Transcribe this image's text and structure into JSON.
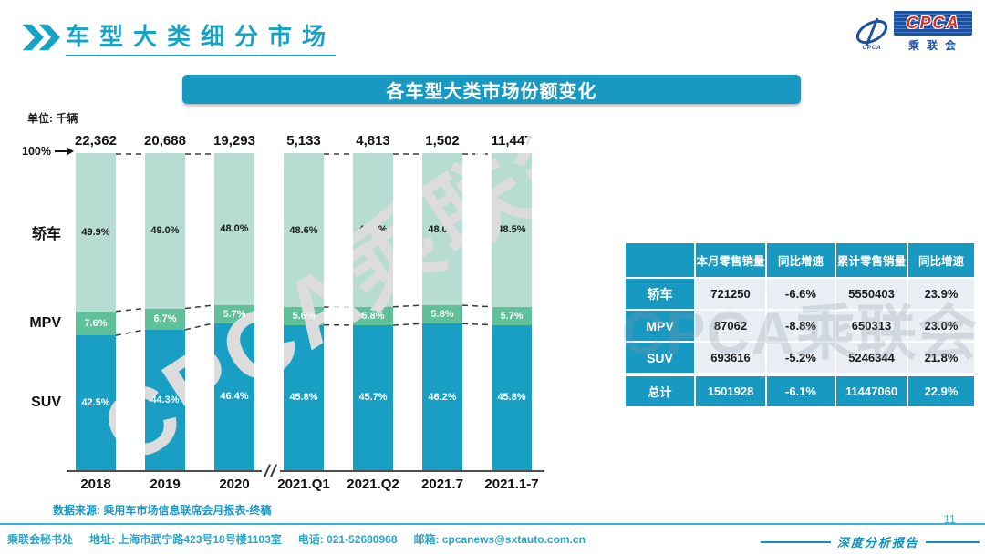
{
  "header": {
    "title": "车型大类细分市场",
    "logo": {
      "acronym": "CPCA",
      "org_name": "乘联会",
      "emblem_caption": "CPCA"
    }
  },
  "banner": {
    "title": "各车型大类市场份额变化"
  },
  "chart_data": {
    "type": "stacked-bar-100pct",
    "title": "各车型大类市场份额变化",
    "unit_note": "单位: 千辆",
    "y_top_label": "100%",
    "categories": [
      "2018",
      "2019",
      "2020",
      "2021.Q1",
      "2021.Q2",
      "2021.7",
      "2021.1-7"
    ],
    "totals_thousand_units": [
      "22,362",
      "20,688",
      "19,293",
      "5,133",
      "4,813",
      "1,502",
      "11,447"
    ],
    "series": [
      {
        "key": "sedan",
        "name": "轿车",
        "color": "#b7dcd2",
        "label_color": "#1a1a1a",
        "values": [
          49.9,
          49.0,
          48.0,
          48.6,
          48.5,
          48.0,
          48.5
        ]
      },
      {
        "key": "mpv",
        "name": "MPV",
        "color": "#5fc09a",
        "label_color": "#ffffff",
        "values": [
          7.6,
          6.7,
          5.7,
          5.6,
          5.8,
          5.8,
          5.7
        ]
      },
      {
        "key": "suv",
        "name": "SUV",
        "color": "#199fc3",
        "label_color": "#ffffff",
        "values": [
          42.5,
          44.3,
          46.4,
          45.8,
          45.7,
          46.2,
          45.8
        ]
      }
    ],
    "axis_break_between": [
      "2020",
      "2021.Q1"
    ],
    "legend_position": "left",
    "grid": false
  },
  "table": {
    "headers": [
      "",
      "本月零售销量",
      "同比增速",
      "累计零售销量",
      "同比增速"
    ],
    "rows": [
      {
        "label": "轿车",
        "cells": [
          "721250",
          "-6.6%",
          "5550403",
          "23.9%"
        ]
      },
      {
        "label": "MPV",
        "cells": [
          "87062",
          "-8.8%",
          "650313",
          "23.0%"
        ]
      },
      {
        "label": "SUV",
        "cells": [
          "693616",
          "-5.2%",
          "5246344",
          "21.8%"
        ]
      }
    ],
    "total_row": {
      "label": "总计",
      "cells": [
        "1501928",
        "-6.1%",
        "11447060",
        "22.9%"
      ]
    }
  },
  "source_note": "数据来源: 乘用车市场信息联席会月报表-终稿",
  "watermark_text": "CPCA乘联会",
  "footer": {
    "secretariat": "乘联会秘书处",
    "address": "地址: 上海市武宁路423号18号楼1103室",
    "phone": "电话: 021-52680968",
    "email": "邮箱: cpcanews@sxtauto.com.cn",
    "report_label": "深度分析报告",
    "page_number": "11"
  }
}
